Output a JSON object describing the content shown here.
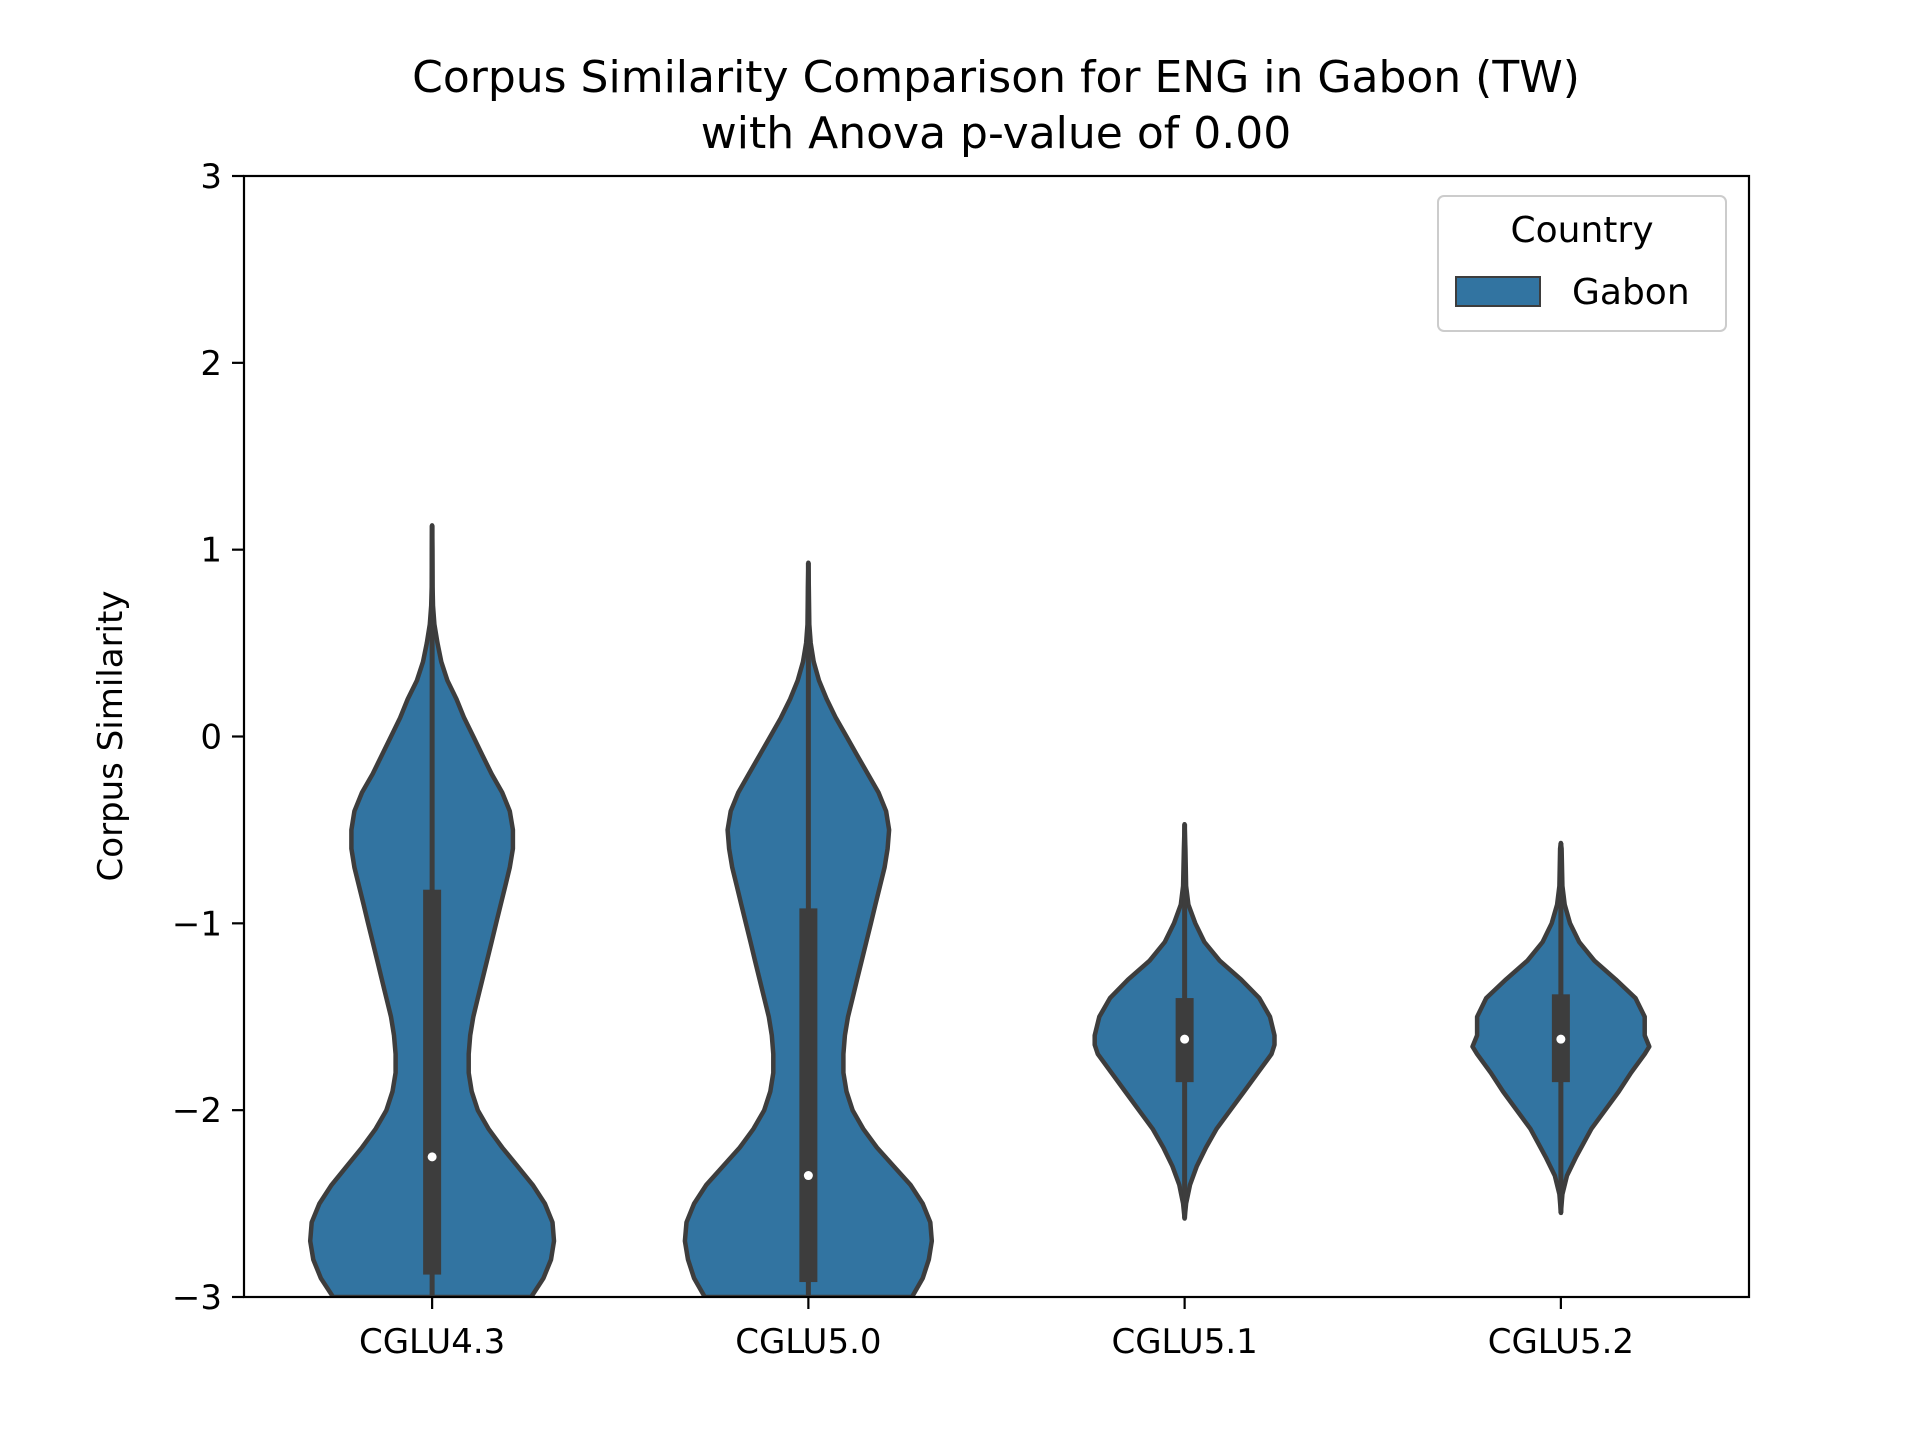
{
  "chart_data": {
    "type": "violin",
    "title_lines": [
      "Corpus Similarity Comparison for ENG in Gabon (TW)",
      "with Anova p-value of 0.00"
    ],
    "xlabel": "",
    "ylabel": "Corpus Similarity",
    "ylim": [
      -3,
      3
    ],
    "yticks": [
      -3,
      -2,
      -1,
      0,
      1,
      2,
      3
    ],
    "ytick_labels": [
      "−3",
      "−2",
      "−1",
      "0",
      "1",
      "2",
      "3"
    ],
    "categories": [
      "CGLU4.3",
      "CGLU5.0",
      "CGLU5.1",
      "CGLU5.2"
    ],
    "legend": {
      "title": "Country",
      "entries": [
        {
          "label": "Gabon",
          "color": "#3274a1"
        }
      ],
      "location": "top-right"
    },
    "colors": {
      "violin_fill": "#3274a1",
      "violin_edge": "#3d3d3d",
      "median_dot": "#ffffff"
    },
    "series": [
      {
        "name": "CGLU4.3",
        "min": -3.0,
        "max": 1.13,
        "q1": -2.88,
        "median": -2.25,
        "q3": -0.82,
        "profile": [
          [
            -3.0,
            0.65
          ],
          [
            -2.9,
            0.73
          ],
          [
            -2.8,
            0.78
          ],
          [
            -2.7,
            0.8
          ],
          [
            -2.6,
            0.79
          ],
          [
            -2.5,
            0.74
          ],
          [
            -2.4,
            0.66
          ],
          [
            -2.3,
            0.56
          ],
          [
            -2.2,
            0.46
          ],
          [
            -2.1,
            0.37
          ],
          [
            -2.0,
            0.3
          ],
          [
            -1.9,
            0.26
          ],
          [
            -1.8,
            0.24
          ],
          [
            -1.7,
            0.24
          ],
          [
            -1.6,
            0.25
          ],
          [
            -1.5,
            0.27
          ],
          [
            -1.4,
            0.3
          ],
          [
            -1.3,
            0.33
          ],
          [
            -1.2,
            0.36
          ],
          [
            -1.1,
            0.39
          ],
          [
            -1.0,
            0.42
          ],
          [
            -0.9,
            0.45
          ],
          [
            -0.8,
            0.48
          ],
          [
            -0.7,
            0.51
          ],
          [
            -0.6,
            0.53
          ],
          [
            -0.5,
            0.53
          ],
          [
            -0.4,
            0.51
          ],
          [
            -0.3,
            0.46
          ],
          [
            -0.2,
            0.39
          ],
          [
            -0.1,
            0.33
          ],
          [
            0.0,
            0.27
          ],
          [
            0.1,
            0.21
          ],
          [
            0.2,
            0.16
          ],
          [
            0.3,
            0.1
          ],
          [
            0.4,
            0.06
          ],
          [
            0.5,
            0.035
          ],
          [
            0.6,
            0.015
          ],
          [
            0.7,
            0.006
          ],
          [
            0.8,
            0.003
          ],
          [
            1.0,
            0.002
          ],
          [
            1.13,
            0.0
          ]
        ]
      },
      {
        "name": "CGLU5.0",
        "min": -3.0,
        "max": 0.93,
        "q1": -2.92,
        "median": -2.35,
        "q3": -0.92,
        "profile": [
          [
            -3.0,
            0.68
          ],
          [
            -2.9,
            0.75
          ],
          [
            -2.8,
            0.79
          ],
          [
            -2.7,
            0.81
          ],
          [
            -2.6,
            0.8
          ],
          [
            -2.5,
            0.75
          ],
          [
            -2.4,
            0.67
          ],
          [
            -2.3,
            0.56
          ],
          [
            -2.2,
            0.45
          ],
          [
            -2.1,
            0.36
          ],
          [
            -2.0,
            0.29
          ],
          [
            -1.9,
            0.25
          ],
          [
            -1.8,
            0.23
          ],
          [
            -1.7,
            0.23
          ],
          [
            -1.6,
            0.24
          ],
          [
            -1.5,
            0.26
          ],
          [
            -1.4,
            0.29
          ],
          [
            -1.3,
            0.32
          ],
          [
            -1.2,
            0.35
          ],
          [
            -1.1,
            0.38
          ],
          [
            -1.0,
            0.41
          ],
          [
            -0.9,
            0.44
          ],
          [
            -0.8,
            0.47
          ],
          [
            -0.7,
            0.5
          ],
          [
            -0.6,
            0.52
          ],
          [
            -0.5,
            0.53
          ],
          [
            -0.4,
            0.51
          ],
          [
            -0.3,
            0.46
          ],
          [
            -0.2,
            0.39
          ],
          [
            -0.1,
            0.32
          ],
          [
            0.0,
            0.25
          ],
          [
            0.1,
            0.18
          ],
          [
            0.2,
            0.12
          ],
          [
            0.3,
            0.07
          ],
          [
            0.4,
            0.035
          ],
          [
            0.5,
            0.015
          ],
          [
            0.6,
            0.006
          ],
          [
            0.8,
            0.003
          ],
          [
            0.93,
            0.0
          ]
        ]
      },
      {
        "name": "CGLU5.1",
        "min": -2.58,
        "max": -0.47,
        "q1": -1.85,
        "median": -1.62,
        "q3": -1.4,
        "profile": [
          [
            -2.58,
            0.0
          ],
          [
            -2.5,
            0.01
          ],
          [
            -2.4,
            0.035
          ],
          [
            -2.3,
            0.08
          ],
          [
            -2.2,
            0.14
          ],
          [
            -2.1,
            0.21
          ],
          [
            -2.0,
            0.3
          ],
          [
            -1.9,
            0.39
          ],
          [
            -1.8,
            0.48
          ],
          [
            -1.7,
            0.57
          ],
          [
            -1.65,
            0.59
          ],
          [
            -1.6,
            0.59
          ],
          [
            -1.5,
            0.56
          ],
          [
            -1.4,
            0.49
          ],
          [
            -1.3,
            0.37
          ],
          [
            -1.2,
            0.23
          ],
          [
            -1.1,
            0.13
          ],
          [
            -1.0,
            0.07
          ],
          [
            -0.9,
            0.025
          ],
          [
            -0.8,
            0.01
          ],
          [
            -0.6,
            0.005
          ],
          [
            -0.47,
            0.0
          ]
        ]
      },
      {
        "name": "CGLU5.2",
        "min": -2.55,
        "max": -0.57,
        "q1": -1.85,
        "median": -1.62,
        "q3": -1.38,
        "profile": [
          [
            -2.55,
            0.0
          ],
          [
            -2.45,
            0.01
          ],
          [
            -2.35,
            0.04
          ],
          [
            -2.25,
            0.1
          ],
          [
            -2.1,
            0.2
          ],
          [
            -2.0,
            0.29
          ],
          [
            -1.9,
            0.38
          ],
          [
            -1.8,
            0.46
          ],
          [
            -1.7,
            0.55
          ],
          [
            -1.66,
            0.58
          ],
          [
            -1.6,
            0.55
          ],
          [
            -1.5,
            0.55
          ],
          [
            -1.4,
            0.49
          ],
          [
            -1.3,
            0.36
          ],
          [
            -1.2,
            0.22
          ],
          [
            -1.1,
            0.12
          ],
          [
            -1.0,
            0.06
          ],
          [
            -0.9,
            0.025
          ],
          [
            -0.8,
            0.01
          ],
          [
            -0.6,
            0.005
          ],
          [
            -0.57,
            0.0
          ]
        ]
      }
    ]
  }
}
